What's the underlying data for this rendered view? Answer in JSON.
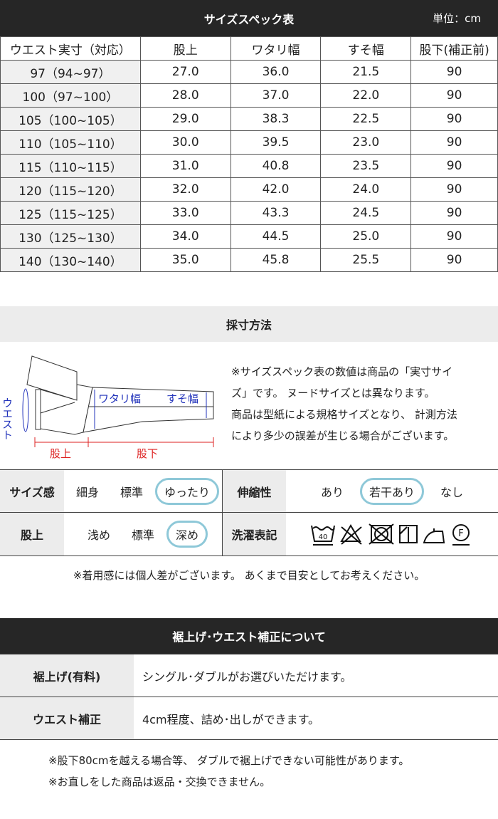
{
  "spec": {
    "title": "サイズスペック表",
    "unit": "単位：cm",
    "headers": [
      "ウエスト実寸（対応）",
      "股上",
      "ワタリ幅",
      "すそ幅",
      "股下(補正前)"
    ],
    "rows": [
      [
        "97（94~97）",
        "27.0",
        "36.0",
        "21.5",
        "90"
      ],
      [
        "100（97~100）",
        "28.0",
        "37.0",
        "22.0",
        "90"
      ],
      [
        "105（100~105）",
        "29.0",
        "38.3",
        "22.5",
        "90"
      ],
      [
        "110（105~110）",
        "30.0",
        "39.5",
        "23.0",
        "90"
      ],
      [
        "115（110~115）",
        "31.0",
        "40.8",
        "23.5",
        "90"
      ],
      [
        "120（115~120）",
        "32.0",
        "42.0",
        "24.0",
        "90"
      ],
      [
        "125（115~125）",
        "33.0",
        "43.3",
        "24.5",
        "90"
      ],
      [
        "130（125~130）",
        "34.0",
        "44.5",
        "25.0",
        "90"
      ],
      [
        "140（130~140）",
        "35.0",
        "45.8",
        "25.5",
        "90"
      ]
    ]
  },
  "measure": {
    "title": "採寸方法",
    "diagram": {
      "waist": "ウエスト",
      "watari": "ワタリ幅",
      "suso": "すそ幅",
      "rise": "股上",
      "inseam": "股下"
    },
    "notes": [
      "※サイズスペック表の数値は商品の「実寸サイ",
      "ズ」です。 ヌードサイズとは異なります。",
      "商品は型紙による規格サイズとなり、 計測方法",
      "により多少の誤差が生じる場合がございます。"
    ]
  },
  "feel": {
    "size": {
      "label": "サイズ感",
      "options": [
        "細身",
        "標準",
        "ゆったり"
      ],
      "selected": "ゆったり"
    },
    "stretch": {
      "label": "伸縮性",
      "options": [
        "あり",
        "若干あり",
        "なし"
      ],
      "selected": "若干あり"
    },
    "rise": {
      "label": "股上",
      "options": [
        "浅め",
        "標準",
        "深め"
      ],
      "selected": "深め"
    },
    "wash": {
      "label": "洗濯表記",
      "icons": [
        "wash-40-icon",
        "no-bleach-icon",
        "no-tumble-dry-icon",
        "line-dry-shade-icon",
        "iron-low-icon",
        "dry-clean-f-icon"
      ],
      "temp": "40",
      "dry": "F"
    },
    "note": "※着用感には個人差がございます。 あくまで目安としてお考えください。"
  },
  "hem": {
    "title": "裾上げ･ウエスト補正について",
    "rows": [
      {
        "label": "裾上げ(有料)",
        "value": "シングル･ダブルがお選びいただけます。"
      },
      {
        "label": "ウエスト補正",
        "value": "4cm程度、詰め･出しができます。"
      }
    ],
    "notes": [
      "※股下80cmを越える場合等、 ダブルで裾上げできない可能性があります。",
      "※お直しをした商品は返品・交換できません。"
    ]
  }
}
